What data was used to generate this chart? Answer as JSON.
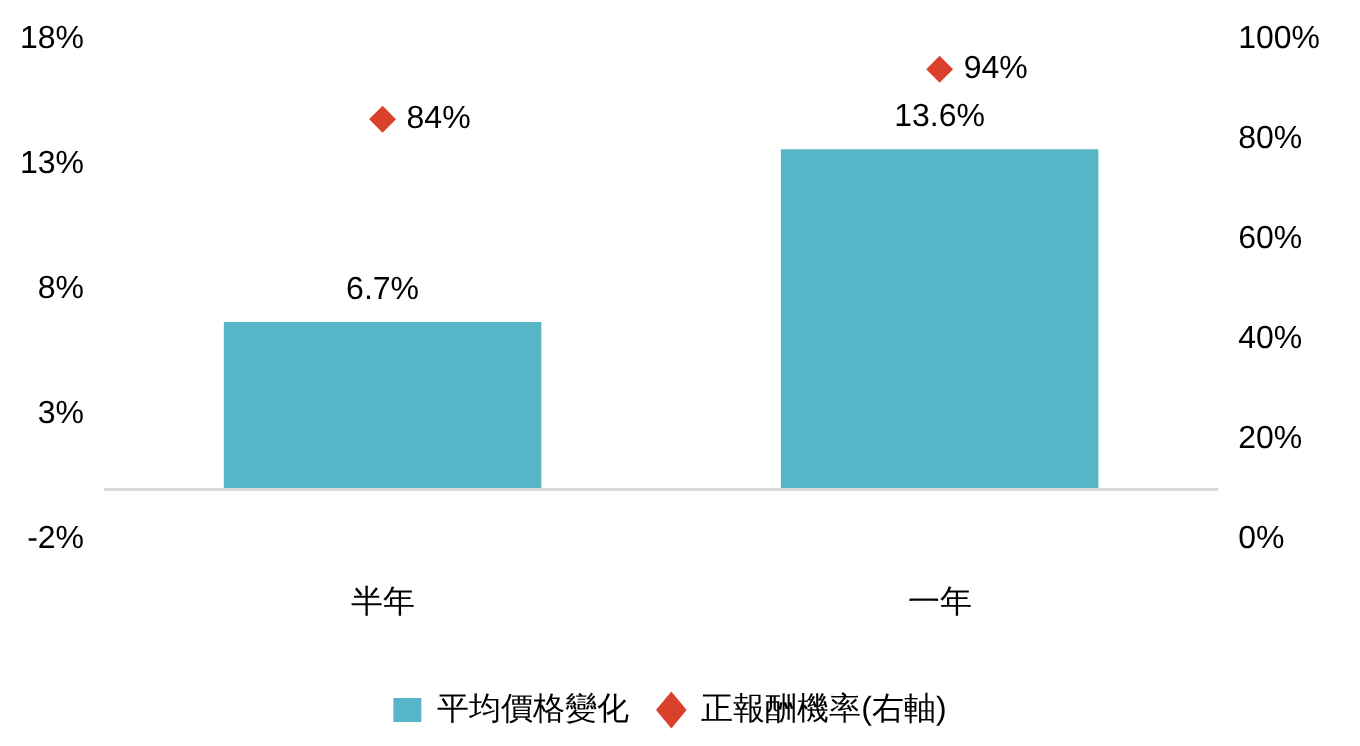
{
  "chart_data": {
    "type": "bar",
    "categories": [
      "半年",
      "一年"
    ],
    "series": [
      {
        "name": "平均價格變化",
        "color": "#56b5c7",
        "values": [
          6.7,
          13.6
        ],
        "value_labels": [
          "6.7%",
          "13.6%"
        ]
      },
      {
        "name": "正報酬機率(右軸)",
        "type": "scatter",
        "axis": "y2",
        "color": "#d9412b",
        "values": [
          84,
          94
        ],
        "value_labels": [
          "84%",
          "94%"
        ]
      }
    ],
    "ylim": [
      -2,
      18
    ],
    "yticks": [
      {
        "value": -2,
        "label": "-2%"
      },
      {
        "value": 3,
        "label": "3%"
      },
      {
        "value": 8,
        "label": "8%"
      },
      {
        "value": 13,
        "label": "13%"
      },
      {
        "value": 18,
        "label": "18%"
      }
    ],
    "y2lim": [
      0,
      100
    ],
    "y2ticks": [
      {
        "value": 0,
        "label": "0%"
      },
      {
        "value": 20,
        "label": "20%"
      },
      {
        "value": 40,
        "label": "40%"
      },
      {
        "value": 60,
        "label": "60%"
      },
      {
        "value": 80,
        "label": "80%"
      },
      {
        "value": 100,
        "label": "100%"
      }
    ],
    "grid": false,
    "legend": "bottom",
    "marker": "diamond"
  }
}
